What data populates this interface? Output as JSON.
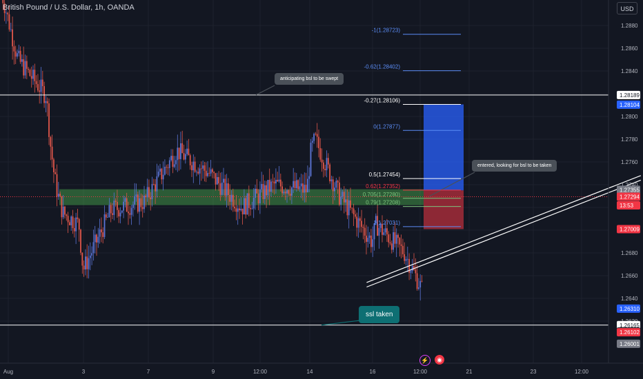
{
  "header": {
    "title": "British Pound / U.S. Dollar, 1h, OANDA",
    "currency_button": "USD"
  },
  "annotations": {
    "bsl_callout": "anticipating bsl to be swept",
    "entry_callout": "entered, looking for bsl to be taken",
    "ssl_callout": "ssl taken"
  },
  "fib_levels": [
    {
      "label": "-1(1.28723)",
      "price": 1.28723,
      "color": "#5b8cf5"
    },
    {
      "label": "-0.62(1.28402)",
      "price": 1.28402,
      "color": "#5b8cf5"
    },
    {
      "label": "-0.27(1.28106)",
      "price": 1.28106,
      "color": "#ffffff"
    },
    {
      "label": "0(1.27877)",
      "price": 1.27877,
      "color": "#5b8cf5"
    },
    {
      "label": "0.5(1.27454)",
      "price": 1.27454,
      "color": "#ffffff"
    },
    {
      "label": "0.62(1.27352)",
      "price": 1.27352,
      "color": "#f23645"
    },
    {
      "label": "0.705(1.27280)",
      "price": 1.2728,
      "color": "#7cc47c"
    },
    {
      "label": "0.79(1.27208)",
      "price": 1.27208,
      "color": "#7cc47c"
    },
    {
      "label": "1(1.27031)",
      "price": 1.27031,
      "color": "#5b8cf5"
    }
  ],
  "price_badges": [
    {
      "label": "1.28189",
      "price": 1.28189,
      "bg": "#ffffff",
      "fg": "#131722"
    },
    {
      "label": "1.28104",
      "price": 1.28104,
      "bg": "#2962ff",
      "fg": "#ffffff"
    },
    {
      "label": "1.27355",
      "price": 1.27355,
      "bg": "#787b86",
      "fg": "#ffffff"
    },
    {
      "label": "1.27294",
      "price": 1.27294,
      "bg": "#f23645",
      "fg": "#ffffff"
    },
    {
      "label": "13:53",
      "price": 1.27218,
      "bg": "#f23645",
      "fg": "#ffffff"
    },
    {
      "label": "1.27009",
      "price": 1.27009,
      "bg": "#f23645",
      "fg": "#ffffff"
    },
    {
      "label": "1.26310",
      "price": 1.2631,
      "bg": "#2962ff",
      "fg": "#ffffff"
    },
    {
      "label": "1.26165",
      "price": 1.26165,
      "bg": "#ffffff",
      "fg": "#131722"
    },
    {
      "label": "1.26108",
      "price": 1.26108,
      "bg": "#131722",
      "fg": "#ffffff"
    },
    {
      "label": "1.26102",
      "price": 1.26102,
      "bg": "#f23645",
      "fg": "#ffffff"
    },
    {
      "label": "1.26001",
      "price": 1.26001,
      "bg": "#787b86",
      "fg": "#ffffff"
    }
  ],
  "icons": {
    "flash": "lightning-icon",
    "news": "news-icon"
  },
  "colors": {
    "background": "#131722",
    "grid": "#1e222d",
    "up_candle": "#5b74d6",
    "down_candle": "#e0564a",
    "target_zone": "#2962ff",
    "stop_zone": "#f23645",
    "demand_zone": "#4caf50"
  },
  "chart_data": {
    "type": "candlestick",
    "title": "British Pound / U.S. Dollar, 1h, OANDA",
    "x_ticks": [
      "Aug",
      "3",
      "7",
      "9",
      "12:00",
      "14",
      "16",
      "12:00",
      "21",
      "23",
      "12:00"
    ],
    "y_ticks": [
      1.288,
      1.286,
      1.284,
      1.282,
      1.28,
      1.278,
      1.276,
      1.274,
      1.272,
      1.27,
      1.268,
      1.266,
      1.264,
      1.262
    ],
    "ylim": [
      1.2592,
      1.2898
    ],
    "horizontal_lines": [
      1.28189,
      1.26165
    ],
    "demand_zone": [
      1.2722,
      1.2736
    ],
    "position": {
      "entry": 1.2735,
      "target": 1.28106,
      "stop": 1.27009
    },
    "trendlines": [
      {
        "from": [
          "Aug 13",
          1.2654
        ],
        "to": [
          "Aug 20",
          1.2748
        ]
      },
      {
        "from": [
          "Aug 13",
          1.265
        ],
        "to": [
          "Aug 20",
          1.2744
        ]
      }
    ],
    "price_path": [
      {
        "date": "Aug 1",
        "price": 1.2865
      },
      {
        "date": "Aug 1",
        "price": 1.285
      },
      {
        "date": "Aug 2",
        "price": 1.2818
      },
      {
        "date": "Aug 2",
        "price": 1.2775
      },
      {
        "date": "Aug 2",
        "price": 1.2745
      },
      {
        "date": "Aug 2",
        "price": 1.2728
      },
      {
        "date": "Aug 2",
        "price": 1.2715
      },
      {
        "date": "Aug 3",
        "price": 1.2705
      },
      {
        "date": "Aug 3",
        "price": 1.2665
      },
      {
        "date": "Aug 4",
        "price": 1.2718
      },
      {
        "date": "Aug 5",
        "price": 1.2725
      },
      {
        "date": "Aug 6",
        "price": 1.277
      },
      {
        "date": "Aug 7",
        "price": 1.275
      },
      {
        "date": "Aug 8",
        "price": 1.272
      },
      {
        "date": "Aug 9",
        "price": 1.274
      },
      {
        "date": "Aug 10",
        "price": 1.2735
      },
      {
        "date": "Aug 10",
        "price": 1.277
      },
      {
        "date": "Aug 10",
        "price": 1.278
      },
      {
        "date": "Aug 11",
        "price": 1.273
      },
      {
        "date": "Aug 12",
        "price": 1.269
      },
      {
        "date": "Aug 12",
        "price": 1.2705
      },
      {
        "date": "Aug 13",
        "price": 1.268
      },
      {
        "date": "Aug 14",
        "price": 1.262
      },
      {
        "date": "Aug 14",
        "price": 1.268
      },
      {
        "date": "Aug 15",
        "price": 1.2705
      },
      {
        "date": "Aug 15",
        "price": 1.273
      },
      {
        "date": "Aug 16",
        "price": 1.2715
      },
      {
        "date": "Aug 16",
        "price": 1.274
      },
      {
        "date": "Aug 17",
        "price": 1.272
      },
      {
        "date": "Aug 18",
        "price": 1.2745
      },
      {
        "date": "Aug 19",
        "price": 1.2785
      },
      {
        "date": "Aug 19",
        "price": 1.2755
      },
      {
        "date": "Aug 19",
        "price": 1.273
      }
    ]
  }
}
